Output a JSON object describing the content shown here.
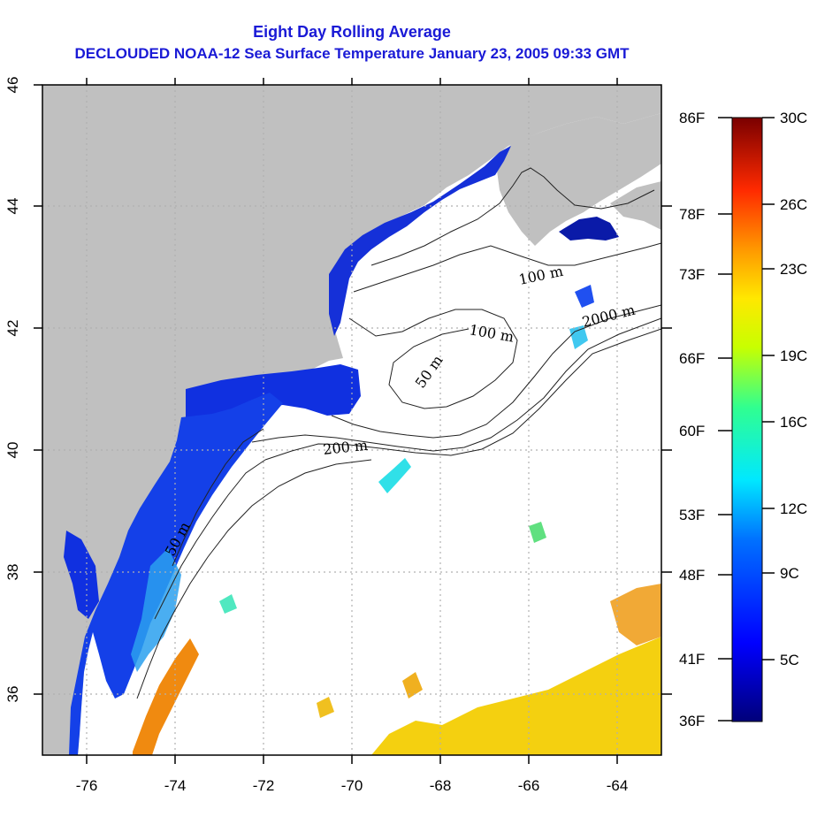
{
  "title": {
    "line1": "Eight Day Rolling Average",
    "line2": "DECLOUDED NOAA-12 Sea Surface Temperature January 23, 2005 09:33 GMT"
  },
  "colors": {
    "land": "#c0c0c0",
    "title": "#1a1ad6",
    "grid": "#b0b0b0",
    "contour": "#222222"
  },
  "chart_data": {
    "type": "heatmap",
    "xlim": [
      -77,
      -63
    ],
    "ylim": [
      35,
      46
    ],
    "x_ticks": [
      "-76",
      "-74",
      "-72",
      "-70",
      "-68",
      "-66",
      "-64"
    ],
    "y_ticks": [
      "36",
      "38",
      "40",
      "42",
      "44",
      "46"
    ],
    "grid": "dotted",
    "contour_labels": [
      "100 m",
      "2000 m",
      "100 m",
      "50 m",
      "200 m",
      "50 m"
    ],
    "colorbar": {
      "celsius": [
        "30C",
        "26C",
        "23C",
        "19C",
        "16C",
        "12C",
        "9C",
        "5C"
      ],
      "fahrenheit": [
        "86F",
        "78F",
        "73F",
        "66F",
        "60F",
        "53F",
        "48F",
        "41F",
        "36F"
      ],
      "range_c": [
        2,
        30
      ]
    }
  }
}
